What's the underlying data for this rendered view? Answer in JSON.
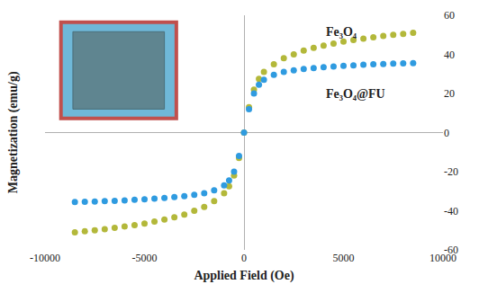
{
  "chart_data": {
    "type": "scatter",
    "xlabel": "Applied Field (Oe)",
    "ylabel": "Magnetization (emu/g)",
    "x": [
      -8500,
      -8000,
      -7500,
      -7000,
      -6500,
      -6000,
      -5500,
      -5000,
      -4500,
      -4000,
      -3500,
      -3000,
      -2500,
      -2000,
      -1500,
      -1000,
      -750,
      -500,
      -250,
      0,
      250,
      500,
      750,
      1000,
      1500,
      2000,
      2500,
      3000,
      3500,
      4000,
      4500,
      5000,
      5500,
      6000,
      6500,
      7000,
      7500,
      8000,
      8500
    ],
    "series": [
      {
        "name": "Fe₃O₄",
        "color": "#b3b83a",
        "marker": "circle",
        "values": [
          -51,
          -50.5,
          -50,
          -49.4,
          -48.7,
          -48,
          -47.3,
          -46.5,
          -45.5,
          -44.5,
          -43.3,
          -42,
          -40,
          -38,
          -35,
          -31,
          -27.5,
          -22,
          -13,
          0,
          13,
          22,
          27.5,
          31,
          35,
          38,
          40,
          42,
          43.3,
          44.5,
          45.5,
          46.5,
          47.3,
          48,
          48.7,
          49.4,
          50,
          50.5,
          51
        ]
      },
      {
        "name": "Fe₃O₄@FU",
        "color": "#2f9be0",
        "marker": "circle",
        "values": [
          -35.5,
          -35.4,
          -35.3,
          -35.1,
          -34.9,
          -34.7,
          -34.4,
          -34.1,
          -33.8,
          -33.4,
          -33,
          -32.5,
          -31.8,
          -31,
          -29.5,
          -27,
          -24.5,
          -20,
          -12,
          0,
          12,
          20,
          24.5,
          27,
          29.5,
          31,
          31.8,
          32.5,
          33,
          33.4,
          33.8,
          34.1,
          34.4,
          34.7,
          34.9,
          35.1,
          35.3,
          35.4,
          35.5
        ]
      }
    ],
    "xlim": [
      -10000,
      10000
    ],
    "xticks": [
      -10000,
      -5000,
      0,
      5000,
      10000
    ],
    "ylim": [
      -60,
      60
    ],
    "yticks": [
      -60,
      -40,
      -20,
      0,
      20,
      40,
      60
    ],
    "grid": false
  }
}
